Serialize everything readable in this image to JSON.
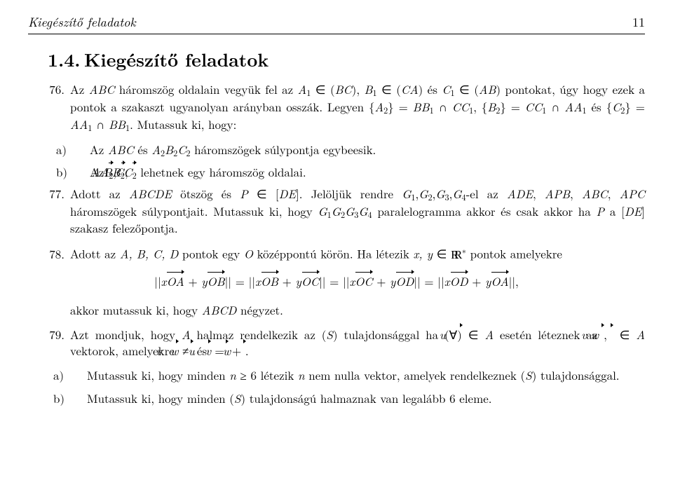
{
  "running_head": "Kiegészítő feladatok",
  "page_number": "11",
  "section": {
    "number": "1.4.",
    "title": "Kiegészítő feladatok"
  },
  "items": {
    "76": {
      "num": "76.",
      "text_parts": {
        "t0": "Az ",
        "ABC": "ABC",
        "t1": " háromszög oldalain vegyük fel az ",
        "A1": "A",
        "s1": "1",
        "t2": " ∈ (",
        "BC": "BC",
        "t3": "), ",
        "B1": "B",
        "s3": "1",
        "t4": " ∈ (",
        "CA": "CA",
        "t5": ") és ",
        "C1": "C",
        "s5": "1",
        "t6": " ∈ (",
        "AB": "AB",
        "t7": ") pontokat, úgy hogy ezek a pontok a szakaszt ugyanolyan arányban osszák. Legyen {",
        "A2": "A",
        "s7": "2",
        "t8": "} = ",
        "BB1": "BB",
        "s8": "1",
        "t9": " ∩ ",
        "CC1": "CC",
        "s9": "1",
        "t10": ", {",
        "B2": "B",
        "s10": "2",
        "t11": "} = ",
        "CC1b": "CC",
        "s11": "1",
        "t12": " ∩ ",
        "AA1": "AA",
        "s12": "1",
        "t13": " és {",
        "C2": "C",
        "s13": "2",
        "t14": "} = ",
        "AA1b": "AA",
        "s14": "1",
        "t15": " ∩ ",
        "BB1b": "BB",
        "s15": "1",
        "t16": ". Mutassuk ki, hogy:"
      },
      "a": {
        "label": "a)",
        "t0": "Az ",
        "ABC": "ABC",
        "t1": " és ",
        "A": "A",
        "s1": "2",
        "B": "B",
        "s2": "2",
        "C": "C",
        "s3": "2",
        "t2": " háromszögek súlypontja egybeesik."
      },
      "b": {
        "label": "b)",
        "t0": "Az ",
        "AA2": "AA",
        "s0": "2",
        "t1": ", ",
        "BB2": "BB",
        "s1": "2",
        "t2": ", ",
        "CC2": "CC",
        "s2": "2",
        "t3": " lehetnek egy háromszög oldalai."
      }
    },
    "77": {
      "num": "77.",
      "t0": "Adott az ",
      "ABCDE": "ABCDE",
      "t1": " ötszög és ",
      "P": "P",
      "t2": " ∈ [",
      "DE": "DE",
      "t3": "]. Jelöljük rendre ",
      "G1": "G",
      "s1": "1",
      "c1": ",",
      "G2": "G",
      "s2": "2",
      "c2": ",",
      "G3": "G",
      "s3": "3",
      "c3": ",",
      "G4": "G",
      "s4": "4",
      "t4": "-el az ",
      "ADE": "ADE",
      "t5": ", ",
      "APB": "APB",
      "t6": ", ",
      "ABC": "ABC",
      "t7": ", ",
      "APC": "APC",
      "t8": " háromszögek súlypontjait. Mutassuk ki, hogy ",
      "Gv1": "G",
      "sv1": "1",
      "Gv2": "G",
      "sv2": "2",
      "Gv3": "G",
      "sv3": "3",
      "Gv4": "G",
      "sv4": "4",
      "t9": " paralelogramma akkor és csak akkor ha ",
      "P2": "P",
      "t10": " a [",
      "DE2": "DE",
      "t11": "] szakasz felezőpontja."
    },
    "78": {
      "num": "78.",
      "t0": "Adott az ",
      "ABCD": "A, B, C, D",
      "t1": " pontok egy ",
      "O": "O",
      "t2": " középpontú körön. Ha létezik ",
      "xy": "x, y",
      "t3": " ∈ ",
      "R": "R",
      "star": "∗",
      "t4": " pontok amelyekre",
      "eq": {
        "p0": "||",
        "x1": "x",
        "OA": "OA",
        "t1": " + ",
        "y1": "y",
        "OB": "OB",
        "t2": "|| = ||",
        "x2": "x",
        "OB2": "OB",
        "t3": " + ",
        "y2": "y",
        "OC": "OC",
        "t4": "|| = ||",
        "x3": "x",
        "OC2": "OC",
        "t5": " + ",
        "y3": "y",
        "OD": "OD",
        "t6": "|| = ||",
        "x4": "x",
        "OD2": "OD",
        "t7": " + ",
        "y4": "y",
        "OA2": "OA",
        "t8": "||,"
      },
      "after": "akkor mutassuk ki, hogy ",
      "ABCD2": "ABCD",
      "after2": " négyzet."
    },
    "79": {
      "num": "79.",
      "t0": "Azt mondjuk, hogy ",
      "A": "A",
      "t1": " halmaz rendelkezik az (",
      "S": "S",
      "t2": ") tulajdonsággal ha (∀)",
      "u": "u",
      "t3": " ∈ ",
      "A2": "A",
      "t4": " esetén léteznek az ",
      "v": "v",
      "t5": ", ",
      "w": "w",
      "t6": " ∈ ",
      "A3": "A",
      "t7": " vektorok, amelyekre ",
      "v2": "v",
      "ne": " ≠ ",
      "w2": "w",
      "t8": " és ",
      "u2": "u",
      "eq": " = ",
      "v3": "v",
      "plus": " + ",
      "w3": "w",
      "dot": ".",
      "a": {
        "label": "a)",
        "t0": "Mutassuk ki, hogy minden ",
        "n": "n",
        "t1": " ≥ 6 létezik ",
        "n2": "n",
        "t2": " nem nulla vektor, amelyek rendelkeznek (",
        "S": "S",
        "t3": ") tulajdonsággal."
      },
      "b": {
        "label": "b)",
        "t0": "Mutassuk ki, hogy minden (",
        "S": "S",
        "t1": ") tulajdonságú halmaznak van legalább 6 eleme."
      }
    }
  }
}
